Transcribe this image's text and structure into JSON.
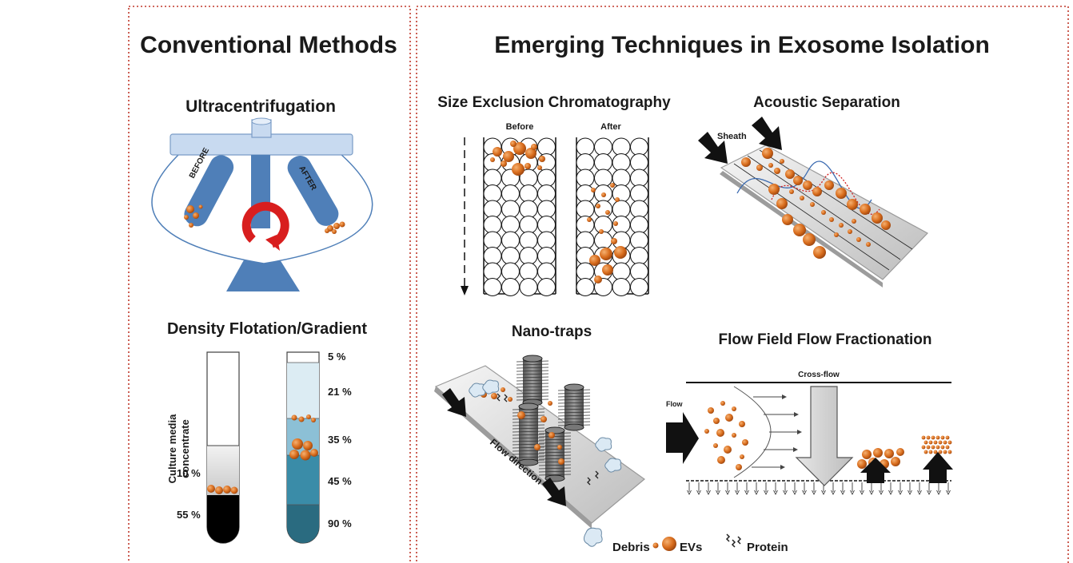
{
  "panels": {
    "conventional": {
      "title": "Conventional Methods",
      "ultracentrifugation": {
        "title": "Ultracentrifugation",
        "tube_left_label": "BEFORE",
        "tube_right_label": "AFTER"
      },
      "density": {
        "title": "Density Flotation/Gradient",
        "tube1_side_label_line1": "Culture media",
        "tube1_side_label_line2": "concentrate",
        "tube1_labels": [
          "10 %",
          "55 %"
        ],
        "tube2_labels": [
          "5 %",
          "21 %",
          "35 %",
          "45 %",
          "90 %"
        ]
      }
    },
    "emerging": {
      "title": "Emerging Techniques in Exosome Isolation",
      "sec": {
        "title": "Size Exclusion Chromatography",
        "before_label": "Before",
        "after_label": "After"
      },
      "acoustic": {
        "title": "Acoustic Separation",
        "sheath_label": "Sheath"
      },
      "nanotraps": {
        "title": "Nano-traps",
        "flow_direction_label": "Flow direction"
      },
      "ff": {
        "title": "Flow Field Flow Fractionation",
        "crossflow_label": "Cross-flow",
        "flow_label": "Flow"
      }
    }
  },
  "legend": {
    "debris": "Debris",
    "evs": "EVs",
    "protein": "Protein"
  },
  "colors": {
    "ev_orange": "#d2691e",
    "ev_orange_light": "#f0a060",
    "steel_blue": "#4f7fb8",
    "steel_blue_light": "#c8daf0",
    "border_red": "#c0392b",
    "rotor_arrow": "#d81e1e",
    "gray_trap": "#707070"
  }
}
